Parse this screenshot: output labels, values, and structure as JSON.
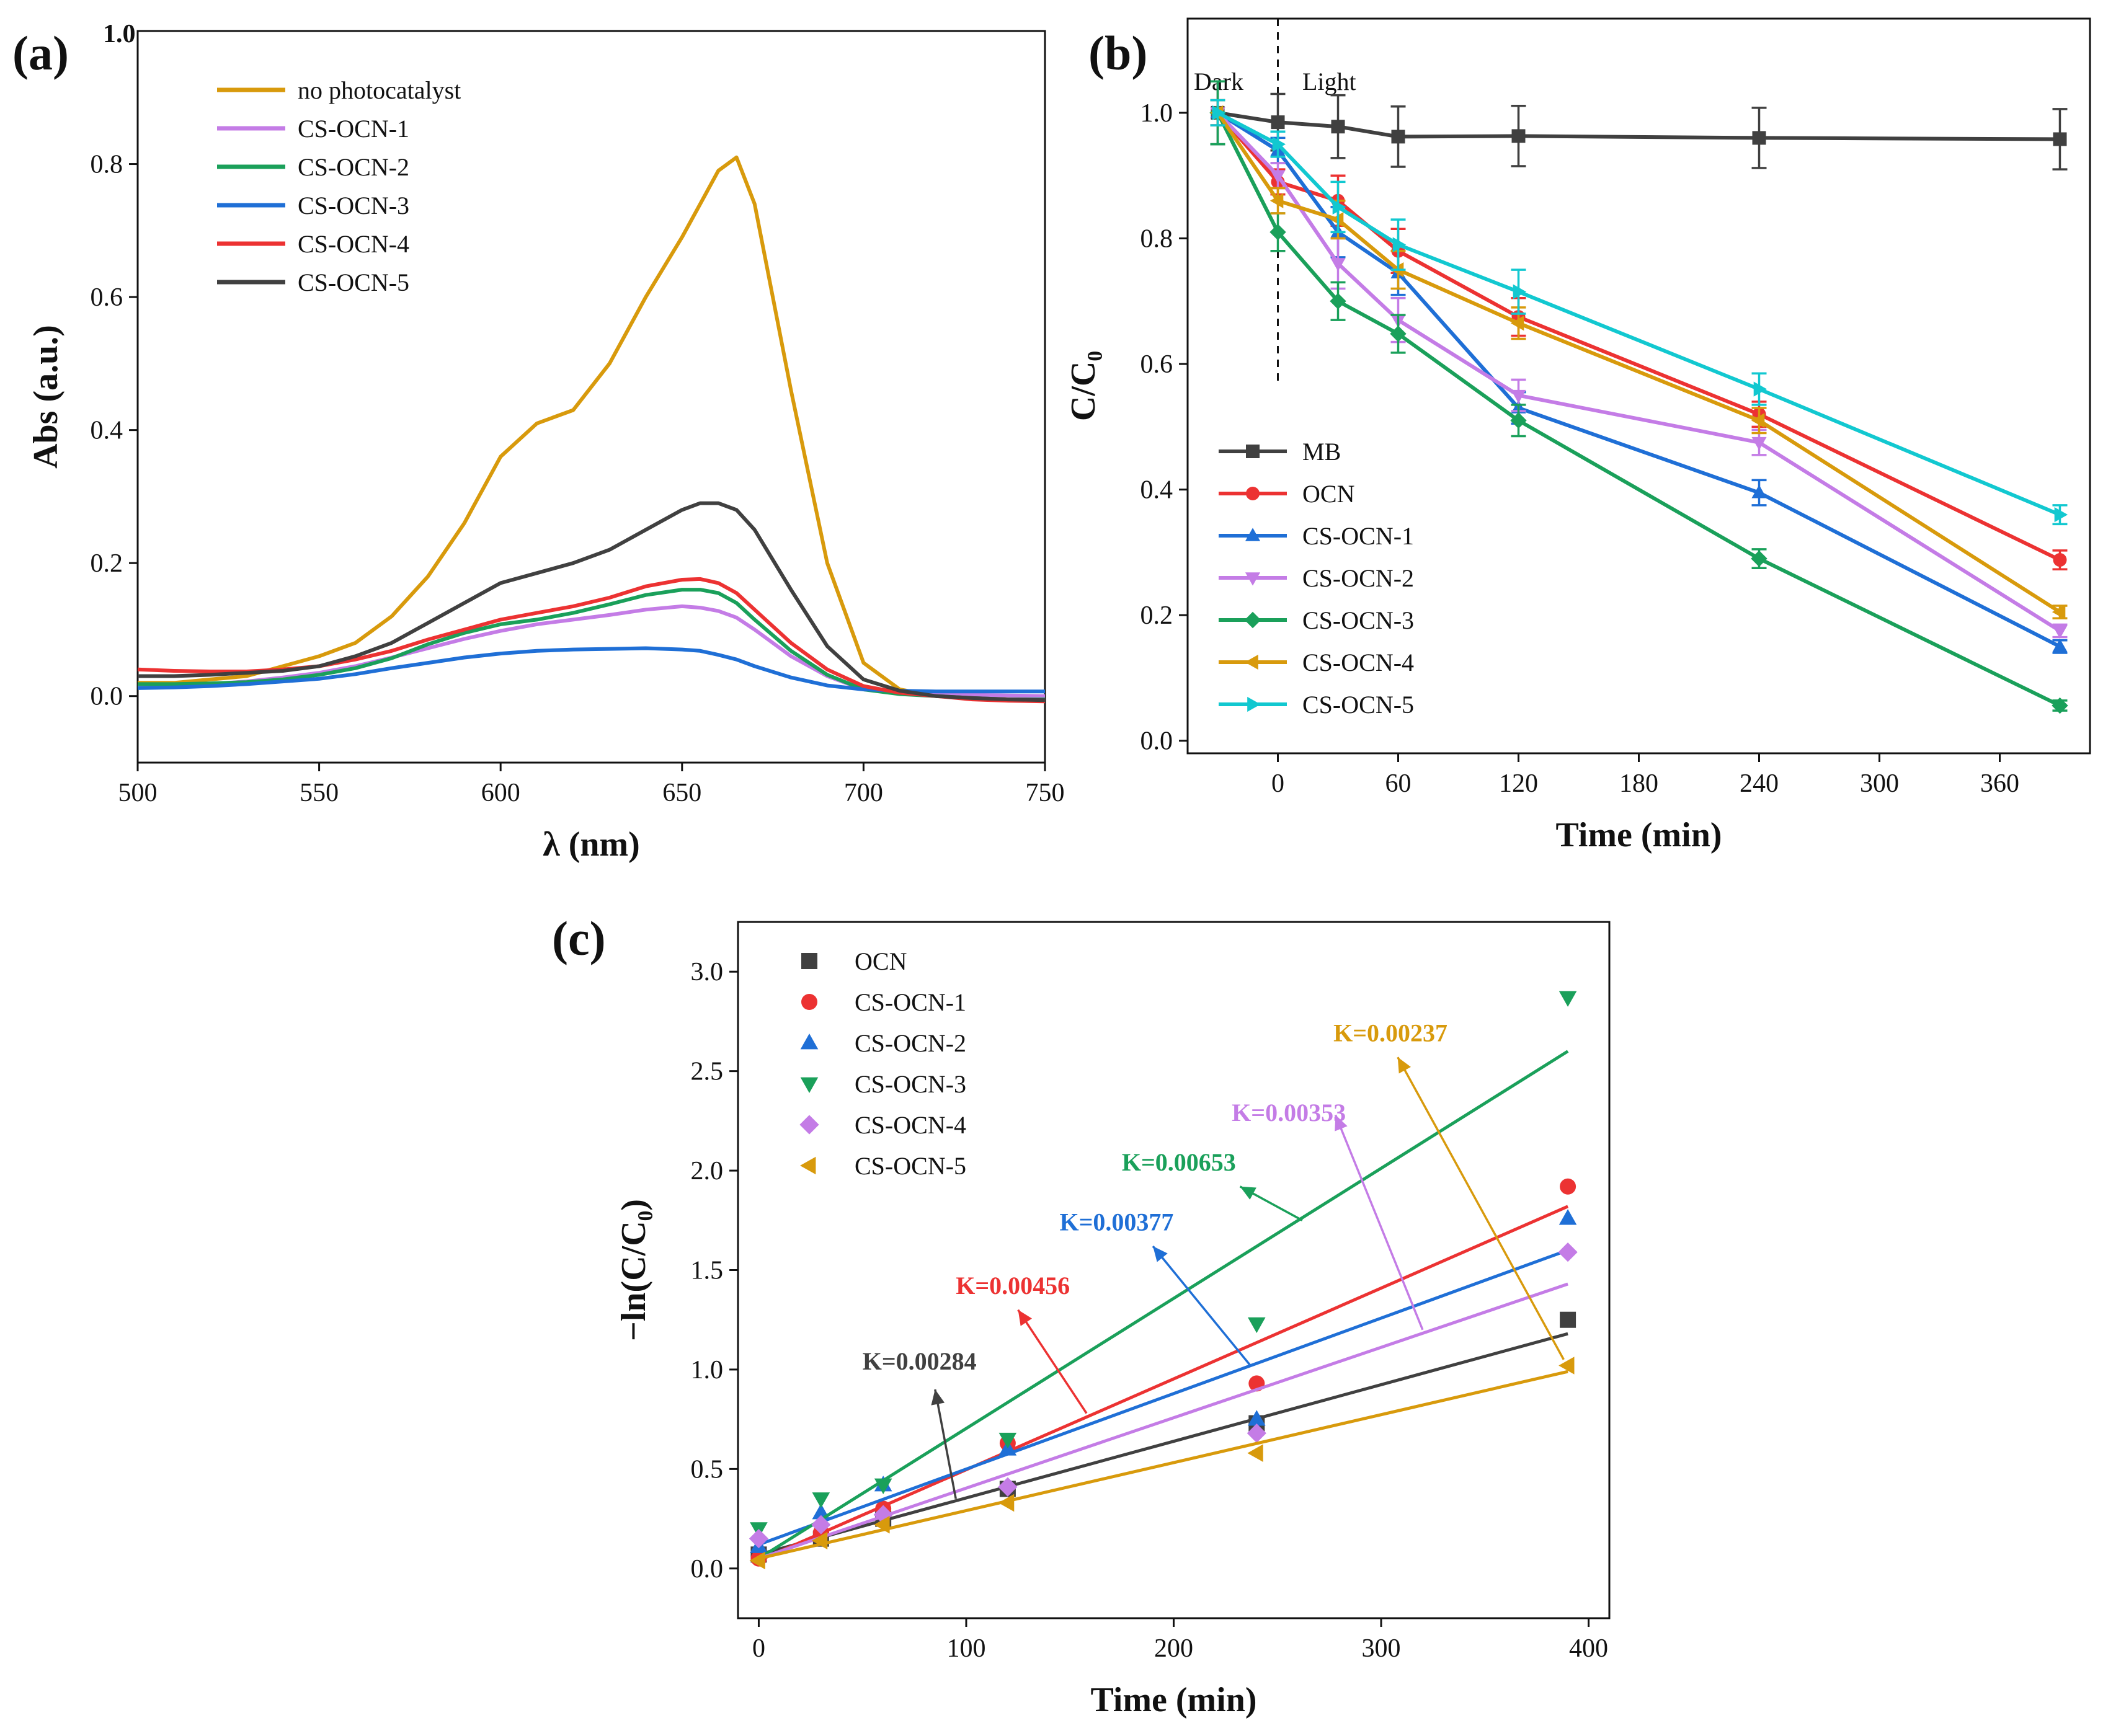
{
  "chart_data": [
    {
      "panel": "(a)",
      "type": "line",
      "xlabel": "λ (nm)",
      "ylabel": "Abs (a.u.)",
      "xlim": [
        500,
        750
      ],
      "ylim": [
        -0.1,
        1.0
      ],
      "xticks": [
        500,
        550,
        600,
        650,
        700,
        750
      ],
      "yticks": [
        0.0,
        0.2,
        0.4,
        0.6,
        0.8
      ],
      "ytop_label": "1.0",
      "legend_position": "top-left",
      "x": [
        500,
        510,
        520,
        530,
        540,
        550,
        560,
        570,
        580,
        590,
        600,
        610,
        620,
        630,
        640,
        650,
        655,
        660,
        665,
        670,
        680,
        690,
        700,
        710,
        720,
        730,
        740,
        750
      ],
      "series": [
        {
          "name": "no photocatalyst",
          "color": "#D89A0C",
          "values": [
            0.02,
            0.02,
            0.025,
            0.03,
            0.045,
            0.06,
            0.08,
            0.12,
            0.18,
            0.26,
            0.36,
            0.41,
            0.43,
            0.5,
            0.6,
            0.69,
            0.74,
            0.79,
            0.81,
            0.74,
            0.46,
            0.2,
            0.05,
            0.01,
            0.0,
            0.0,
            -0.005,
            -0.005
          ]
        },
        {
          "name": "CS-OCN-1",
          "color": "#C47CE6",
          "values": [
            0.015,
            0.016,
            0.018,
            0.022,
            0.028,
            0.035,
            0.045,
            0.058,
            0.072,
            0.086,
            0.098,
            0.108,
            0.115,
            0.122,
            0.13,
            0.135,
            0.133,
            0.128,
            0.118,
            0.1,
            0.06,
            0.03,
            0.01,
            0.005,
            0.003,
            0.002,
            0.001,
            0.0
          ]
        },
        {
          "name": "CS-OCN-2",
          "color": "#1AA05A",
          "values": [
            0.018,
            0.018,
            0.019,
            0.021,
            0.025,
            0.032,
            0.042,
            0.057,
            0.078,
            0.095,
            0.108,
            0.115,
            0.125,
            0.138,
            0.152,
            0.16,
            0.16,
            0.155,
            0.14,
            0.115,
            0.068,
            0.032,
            0.01,
            0.003,
            0.0,
            -0.003,
            -0.005,
            -0.005
          ]
        },
        {
          "name": "CS-OCN-3",
          "color": "#1F6FD6",
          "values": [
            0.012,
            0.013,
            0.015,
            0.018,
            0.022,
            0.026,
            0.033,
            0.042,
            0.05,
            0.058,
            0.064,
            0.068,
            0.07,
            0.071,
            0.072,
            0.07,
            0.068,
            0.062,
            0.055,
            0.045,
            0.028,
            0.016,
            0.01,
            0.008,
            0.007,
            0.007,
            0.007,
            0.007
          ]
        },
        {
          "name": "CS-OCN-4",
          "color": "#EC3232",
          "values": [
            0.04,
            0.038,
            0.037,
            0.037,
            0.04,
            0.045,
            0.055,
            0.068,
            0.085,
            0.1,
            0.115,
            0.125,
            0.135,
            0.148,
            0.165,
            0.175,
            0.176,
            0.17,
            0.155,
            0.13,
            0.08,
            0.04,
            0.015,
            0.005,
            0.0,
            -0.005,
            -0.007,
            -0.008
          ]
        },
        {
          "name": "CS-OCN-5",
          "color": "#404040",
          "values": [
            0.03,
            0.03,
            0.032,
            0.035,
            0.038,
            0.045,
            0.06,
            0.08,
            0.11,
            0.14,
            0.17,
            0.185,
            0.2,
            0.22,
            0.25,
            0.28,
            0.29,
            0.29,
            0.28,
            0.25,
            0.16,
            0.075,
            0.025,
            0.008,
            0.0,
            -0.003,
            -0.005,
            -0.006
          ]
        }
      ]
    },
    {
      "panel": "(b)",
      "type": "line",
      "xlabel": "Time (min)",
      "ylabel": "C/C₀",
      "xlim": [
        -45,
        405
      ],
      "ylim": [
        -0.02,
        1.15
      ],
      "xticks": [
        0,
        60,
        120,
        180,
        240,
        300,
        360
      ],
      "yticks": [
        0.0,
        0.2,
        0.4,
        0.6,
        0.8,
        1.0
      ],
      "annotations": [
        "Dark",
        "Light"
      ],
      "dark_light_boundary_min": 0,
      "legend_position": "bottom-left",
      "x": [
        -30,
        0,
        30,
        60,
        120,
        240,
        390
      ],
      "series": [
        {
          "name": "MB",
          "marker": "square",
          "color": "#404040",
          "values": [
            1.0,
            0.985,
            0.978,
            0.962,
            0.963,
            0.96,
            0.958
          ],
          "errors": [
            0.05,
            0.045,
            0.05,
            0.048,
            0.048,
            0.048,
            0.048
          ]
        },
        {
          "name": "OCN",
          "marker": "circle",
          "color": "#EC3232",
          "values": [
            1.0,
            0.89,
            0.86,
            0.78,
            0.675,
            0.52,
            0.288
          ],
          "errors": [
            0.02,
            0.02,
            0.04,
            0.035,
            0.03,
            0.02,
            0.015
          ]
        },
        {
          "name": "CS-OCN-1",
          "marker": "triangle-up",
          "color": "#1F6FD6",
          "values": [
            1.0,
            0.94,
            0.81,
            0.745,
            0.53,
            0.395,
            0.15
          ],
          "errors": [
            0.02,
            0.02,
            0.04,
            0.035,
            0.025,
            0.02,
            0.01
          ]
        },
        {
          "name": "CS-OCN-2",
          "marker": "triangle-down",
          "color": "#C47CE6",
          "values": [
            1.0,
            0.9,
            0.76,
            0.67,
            0.55,
            0.475,
            0.175
          ],
          "errors": [
            0.02,
            0.02,
            0.04,
            0.035,
            0.025,
            0.02,
            0.01
          ]
        },
        {
          "name": "CS-OCN-3",
          "marker": "diamond",
          "color": "#1AA05A",
          "values": [
            1.0,
            0.81,
            0.7,
            0.648,
            0.51,
            0.29,
            0.056
          ],
          "errors": [
            0.05,
            0.03,
            0.03,
            0.03,
            0.025,
            0.015,
            0.008
          ]
        },
        {
          "name": "CS-OCN-4",
          "marker": "triangle-left",
          "color": "#D89A0C",
          "values": [
            1.0,
            0.86,
            0.83,
            0.75,
            0.665,
            0.51,
            0.205
          ],
          "errors": [
            0.02,
            0.02,
            0.03,
            0.03,
            0.025,
            0.02,
            0.01
          ]
        },
        {
          "name": "CS-OCN-5",
          "marker": "triangle-right",
          "color": "#12C8D0",
          "values": [
            1.0,
            0.95,
            0.85,
            0.79,
            0.715,
            0.56,
            0.36
          ],
          "errors": [
            0.02,
            0.02,
            0.04,
            0.04,
            0.035,
            0.025,
            0.015
          ]
        }
      ]
    },
    {
      "panel": "(c)",
      "type": "scatter",
      "xlabel": "Time (min)",
      "ylabel": "−ln(C/C₀)",
      "xlim": [
        -10,
        410
      ],
      "ylim": [
        -0.25,
        3.25
      ],
      "xticks": [
        0,
        100,
        200,
        300,
        400
      ],
      "yticks": [
        0.0,
        0.5,
        1.0,
        1.5,
        2.0,
        2.5,
        3.0
      ],
      "legend_position": "top-left",
      "x": [
        0,
        30,
        60,
        120,
        240,
        390
      ],
      "series": [
        {
          "name": "OCN",
          "marker": "square",
          "color": "#404040",
          "values": [
            0.07,
            0.15,
            0.25,
            0.4,
            0.73,
            1.25
          ],
          "fit": [
            0.07,
            1.18
          ],
          "k_label": "K=0.00284"
        },
        {
          "name": "CS-OCN-1",
          "marker": "circle",
          "color": "#EC3232",
          "values": [
            0.05,
            0.18,
            0.3,
            0.63,
            0.93,
            1.92
          ],
          "fit": [
            0.04,
            1.82
          ],
          "k_label": "K=0.00456"
        },
        {
          "name": "CS-OCN-2",
          "marker": "triangle-up",
          "color": "#1F6FD6",
          "values": [
            0.11,
            0.28,
            0.42,
            0.6,
            0.75,
            1.76
          ],
          "fit": [
            0.12,
            1.6
          ],
          "k_label": "K=0.00377"
        },
        {
          "name": "CS-OCN-3",
          "marker": "triangle-down",
          "color": "#1AA05A",
          "values": [
            0.2,
            0.35,
            0.42,
            0.65,
            1.23,
            2.87
          ],
          "fit": [
            0.05,
            2.6
          ],
          "k_label": "K=0.00653"
        },
        {
          "name": "CS-OCN-4",
          "marker": "diamond",
          "color": "#C47CE6",
          "values": [
            0.15,
            0.22,
            0.27,
            0.41,
            0.68,
            1.59
          ],
          "fit": [
            0.05,
            1.43
          ],
          "k_label": "K=0.00353"
        },
        {
          "name": "CS-OCN-5",
          "marker": "triangle-left",
          "color": "#D89A0C",
          "values": [
            0.04,
            0.14,
            0.22,
            0.33,
            0.58,
            1.02
          ],
          "fit": [
            0.05,
            0.99
          ],
          "k_label": "K=0.00237"
        }
      ]
    }
  ]
}
